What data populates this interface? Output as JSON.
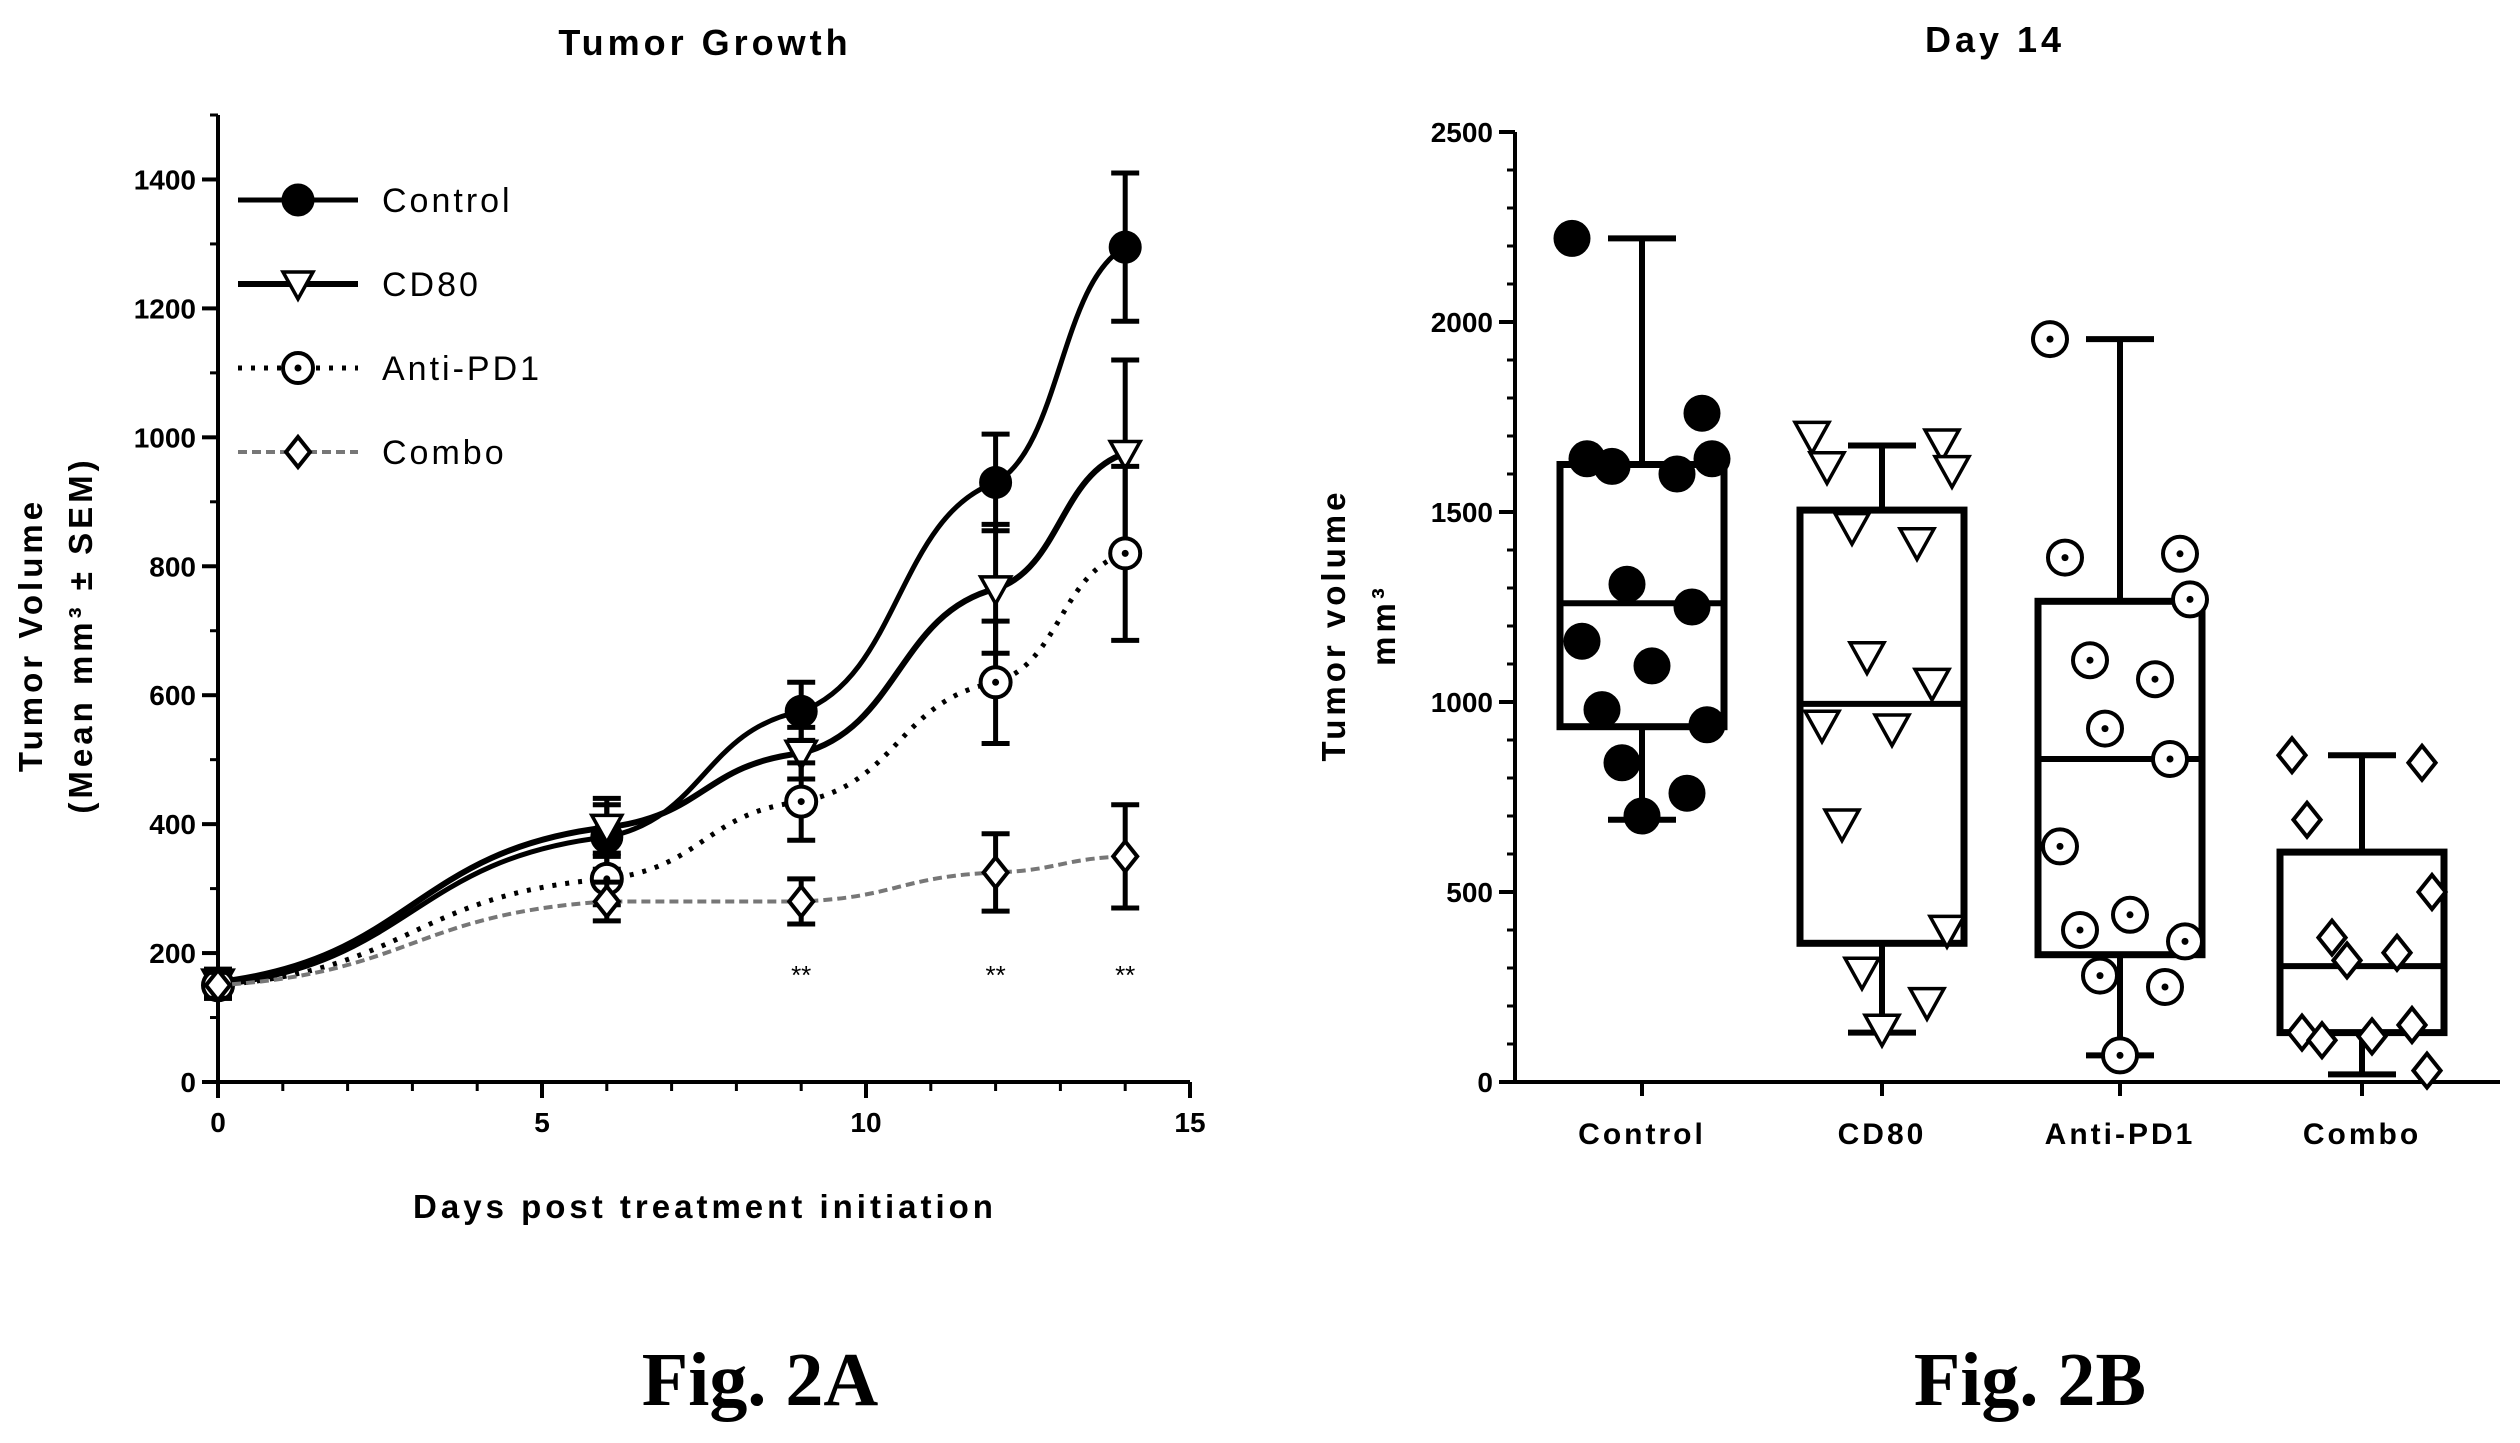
{
  "chart_data": [
    {
      "type": "line",
      "title": "Tumor Growth",
      "xlabel": "Days post treatment initiation",
      "ylabel_line1": "Tumor Volume",
      "ylabel_line2": "(Mean mm³ ± SEM)",
      "xlim": [
        0,
        15
      ],
      "ylim": [
        0,
        1500
      ],
      "xticks": [
        0,
        5,
        10,
        15
      ],
      "yticks": [
        0,
        200,
        400,
        600,
        800,
        1000,
        1200,
        1400
      ],
      "x": [
        0,
        6,
        9,
        12,
        14
      ],
      "series": [
        {
          "name": "Control",
          "values": [
            150,
            380,
            575,
            930,
            1295
          ],
          "errors": [
            20,
            50,
            45,
            75,
            115
          ]
        },
        {
          "name": "CD80",
          "values": [
            155,
            395,
            510,
            765,
            975
          ],
          "errors": [
            20,
            45,
            40,
            100,
            145
          ]
        },
        {
          "name": "Anti-PD1",
          "values": [
            150,
            315,
            435,
            620,
            820
          ],
          "errors": [
            20,
            40,
            60,
            95,
            135
          ]
        },
        {
          "name": "Combo",
          "values": [
            150,
            280,
            280,
            325,
            350
          ],
          "errors": [
            20,
            30,
            35,
            60,
            80
          ]
        }
      ],
      "annotations": [
        {
          "x": 9,
          "text": "**"
        },
        {
          "x": 12,
          "text": "**"
        },
        {
          "x": 14,
          "text": "**"
        }
      ],
      "legend_position": "top-left"
    },
    {
      "type": "box",
      "title": "Day 14",
      "ylabel_line1": "Tumor volume",
      "ylabel_line2": "mm³",
      "ylim": [
        0,
        2500
      ],
      "yticks": [
        0,
        500,
        1000,
        1500,
        2000,
        2500
      ],
      "categories": [
        "Control",
        "CD80",
        "Anti-PD1",
        "Combo"
      ],
      "boxes": [
        {
          "min": 690,
          "q1": 935,
          "median": 1260,
          "q3": 1625,
          "max": 2220,
          "points": [
            2220,
            1760,
            1640,
            1640,
            1620,
            1600,
            1310,
            1250,
            1160,
            1095,
            980,
            940,
            840,
            760,
            700
          ]
        },
        {
          "min": 130,
          "q1": 365,
          "median": 995,
          "q3": 1505,
          "max": 1675,
          "points": [
            1700,
            1680,
            1620,
            1610,
            1460,
            1420,
            1120,
            1050,
            940,
            930,
            680,
            400,
            290,
            210,
            140
          ]
        },
        {
          "min": 70,
          "q1": 335,
          "median": 850,
          "q3": 1265,
          "max": 1955,
          "points": [
            1955,
            1390,
            1380,
            1270,
            1110,
            1060,
            930,
            850,
            620,
            440,
            400,
            370,
            280,
            250,
            70
          ]
        },
        {
          "min": 20,
          "q1": 130,
          "median": 305,
          "q3": 605,
          "max": 860,
          "points": [
            860,
            840,
            690,
            500,
            380,
            340,
            320,
            150,
            130,
            120,
            110,
            30
          ]
        }
      ]
    }
  ],
  "figure_labels": [
    "Fig. 2A",
    "Fig. 2B"
  ]
}
